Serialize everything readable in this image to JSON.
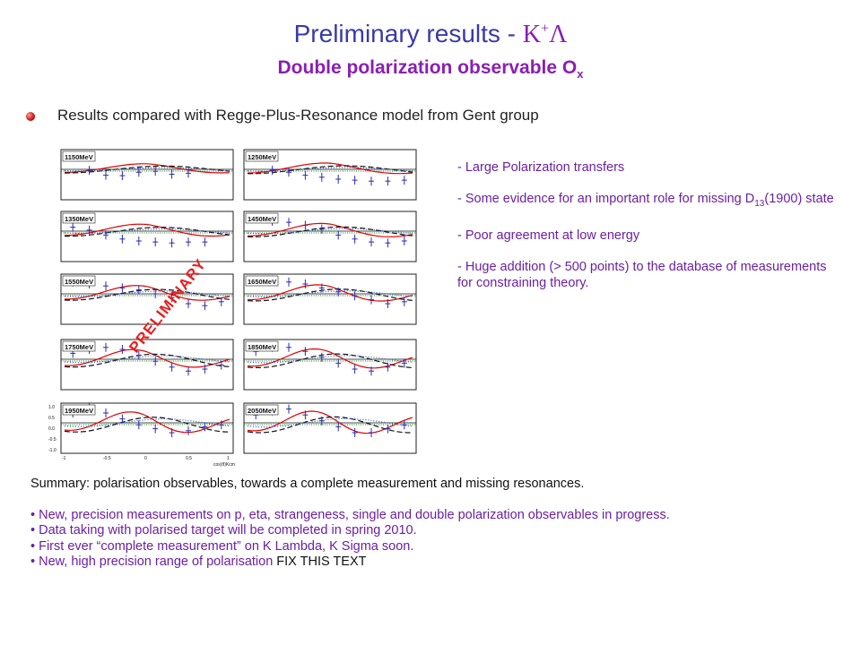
{
  "header": {
    "title_prefix": "Preliminary results - ",
    "title_symbol_k": "K",
    "title_symbol_plus": "+",
    "title_symbol_lambda": "Λ",
    "subtitle_main": "Double polarization observable O",
    "subtitle_sub": "x",
    "bullet": "Results compared with Regge-Plus-Resonance model from Gent group"
  },
  "stamp": "PRELIMINARY",
  "notes": {
    "n1": "- Large Polarization transfers",
    "n2a": "- Some evidence for an important role for missing D",
    "n2sub": "13",
    "n2b": "(1900) state",
    "n3": "- Poor agreement at low energy",
    "n4": "- Huge addition (> 500 points) to the database of measurements for constraining theory."
  },
  "summary": {
    "head": "Summary: polarisation observables, towards a complete measurement and missing resonances.",
    "points": [
      "• New, precision measurements on p, eta, strangeness, single and double polarization observables in progress.",
      "• Data taking with polarised target will be completed in spring 2010.",
      "• First ever “complete measurement” on K Lambda, K Sigma soon."
    ],
    "last_point": "• New, high precision range of polarisation ",
    "fix_text": "FIX THIS TEXT"
  },
  "colors": {
    "title": "#3a3aa8",
    "purple": "#8a1fb4",
    "data": "#2a2ab0",
    "model_red": "#e00000",
    "model_green": "#108010"
  },
  "chart_data": [
    {
      "type": "scatter",
      "title": "1150MeV",
      "xlim": [
        -1,
        1
      ],
      "ylim": [
        -1,
        1
      ],
      "x": [
        -0.7,
        -0.5,
        -0.3,
        -0.1,
        0.1,
        0.3,
        0.5
      ],
      "values": [
        -0.05,
        -0.3,
        -0.32,
        -0.15,
        -0.1,
        -0.25,
        -0.2
      ]
    },
    {
      "type": "scatter",
      "title": "1250MeV",
      "xlim": [
        -1,
        1
      ],
      "ylim": [
        -1,
        1
      ],
      "x": [
        -0.7,
        -0.5,
        -0.3,
        -0.1,
        0.1,
        0.3,
        0.5,
        0.7,
        0.9
      ],
      "values": [
        -0.05,
        -0.15,
        -0.3,
        -0.4,
        -0.5,
        -0.55,
        -0.6,
        -0.6,
        -0.55
      ]
    },
    {
      "type": "scatter",
      "title": "1350MeV",
      "xlim": [
        -1,
        1
      ],
      "ylim": [
        -1,
        1
      ],
      "x": [
        -0.9,
        -0.7,
        -0.5,
        -0.3,
        -0.1,
        0.1,
        0.3,
        0.5,
        0.7
      ],
      "values": [
        0.2,
        0.05,
        -0.2,
        -0.4,
        -0.5,
        -0.55,
        -0.6,
        -0.55,
        -0.55
      ]
    },
    {
      "type": "scatter",
      "title": "1450MeV",
      "xlim": [
        -1,
        1
      ],
      "ylim": [
        -1,
        1
      ],
      "x": [
        -0.7,
        -0.5,
        -0.3,
        -0.1,
        0.1,
        0.3,
        0.5,
        0.7,
        0.9
      ],
      "values": [
        0.5,
        0.45,
        0.3,
        0.1,
        -0.2,
        -0.4,
        -0.55,
        -0.6,
        -0.5
      ]
    },
    {
      "type": "scatter",
      "title": "1550MeV",
      "xlim": [
        -1,
        1
      ],
      "ylim": [
        -1,
        1
      ],
      "x": [
        -0.9,
        -0.7,
        -0.5,
        -0.3,
        -0.1,
        0.1,
        0.3,
        0.5,
        0.7,
        0.9
      ],
      "values": [
        0.6,
        0.5,
        0.4,
        0.3,
        0.2,
        0.0,
        -0.2,
        -0.5,
        -0.6,
        -0.4
      ]
    },
    {
      "type": "scatter",
      "title": "1650MeV",
      "xlim": [
        -1,
        1
      ],
      "ylim": [
        -1,
        1
      ],
      "x": [
        -0.7,
        -0.5,
        -0.3,
        -0.1,
        0.1,
        0.3,
        0.5,
        0.7,
        0.9
      ],
      "values": [
        0.7,
        0.6,
        0.5,
        0.3,
        0.1,
        -0.1,
        -0.3,
        -0.5,
        -0.4
      ]
    },
    {
      "type": "scatter",
      "title": "1750MeV",
      "xlim": [
        -1,
        1
      ],
      "ylim": [
        -1,
        1
      ],
      "x": [
        -0.9,
        -0.7,
        -0.5,
        -0.3,
        -0.1,
        0.1,
        0.3,
        0.5,
        0.7,
        0.9
      ],
      "values": [
        0.3,
        0.5,
        0.6,
        0.5,
        0.2,
        -0.1,
        -0.4,
        -0.6,
        -0.5,
        -0.3
      ]
    },
    {
      "type": "scatter",
      "title": "1850MeV",
      "xlim": [
        -1,
        1
      ],
      "ylim": [
        -1,
        1
      ],
      "x": [
        -0.9,
        -0.7,
        -0.5,
        -0.3,
        -0.1,
        0.1,
        0.3,
        0.5,
        0.7,
        0.9
      ],
      "values": [
        0.4,
        0.6,
        0.6,
        0.4,
        0.1,
        -0.2,
        -0.5,
        -0.6,
        -0.4,
        -0.2
      ]
    },
    {
      "type": "scatter",
      "title": "1950MeV",
      "xlim": [
        -1,
        1
      ],
      "ylim": [
        -1,
        1
      ],
      "x_ticks": [
        "-1",
        "-0.5",
        "0",
        "0.5",
        "1"
      ],
      "y_ticks": [
        "1.0",
        "0.5",
        "0.0",
        "-0.5",
        "-1.0"
      ],
      "xlabel": "cos(θ)Kcm",
      "x": [
        -0.9,
        -0.7,
        -0.5,
        -0.3,
        -0.1,
        0.1,
        0.3,
        0.5,
        0.7,
        0.9
      ],
      "values": [
        0.5,
        0.8,
        0.5,
        0.2,
        -0.1,
        -0.3,
        -0.5,
        -0.4,
        -0.2,
        -0.1
      ]
    },
    {
      "type": "scatter",
      "title": "2050MeV",
      "xlim": [
        -1,
        1
      ],
      "ylim": [
        -1,
        1
      ],
      "x": [
        -0.9,
        -0.7,
        -0.5,
        -0.3,
        -0.1,
        0.1,
        0.3,
        0.5,
        0.7,
        0.9
      ],
      "values": [
        0.4,
        0.6,
        0.7,
        0.4,
        0.1,
        -0.2,
        -0.5,
        -0.5,
        -0.3,
        -0.1
      ]
    }
  ]
}
